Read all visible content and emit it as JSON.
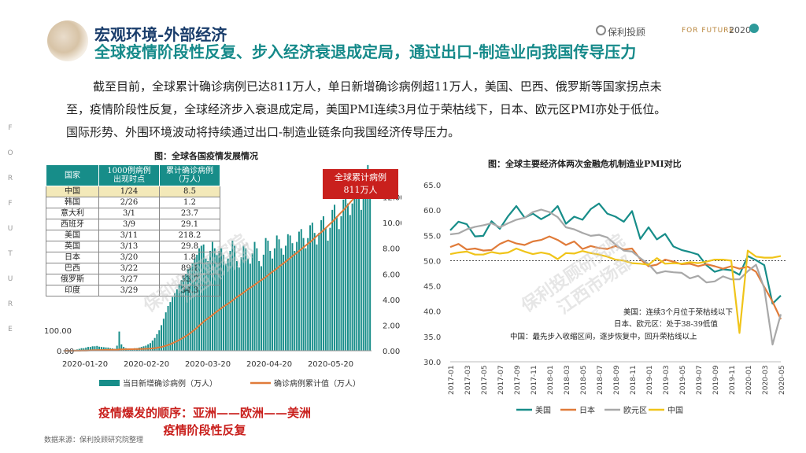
{
  "header": {
    "section": "宏观环境-外部经济",
    "title": "全球疫情阶段性反复、步入经济衰退成定局，通过出口-制造业向我国传导压力",
    "brand": "保利投顾",
    "brand_tag": "FOR FUTURE",
    "brand_year": "2020"
  },
  "side_letters": [
    "F",
    "O",
    "R",
    "F",
    "U",
    "T",
    "U",
    "R",
    "E"
  ],
  "body": {
    "line1": "截至目前，全球累计确诊病例已达811万人，单日新增确诊病例超11万人，美国、巴西、俄罗斯等国家拐点未",
    "line2": "至，疫情阶段性反复，全球经济步入衰退成定局，美国PMI连续3月位于荣枯线下，日本、欧元区PMI亦处于低位。",
    "line3": "国际形势、外围环境波动将持续通过出口-制造业链条向我国经济传导压力。"
  },
  "left_chart_title": "图：全球各国疫情发展情况",
  "right_chart_title": "图：全球主要经济体两次金融危机制造业PMI对比",
  "table": {
    "headers": [
      "国家",
      "1000例病例\n出现时点",
      "累计确诊病例\n（万人）"
    ],
    "rows": [
      [
        "中国",
        "1/24",
        "8.5"
      ],
      [
        "韩国",
        "2/26",
        "1.2"
      ],
      [
        "意大利",
        "3/1",
        "23.7"
      ],
      [
        "西班牙",
        "3/9",
        "29.1"
      ],
      [
        "美国",
        "3/11",
        "218.2"
      ],
      [
        "英国",
        "3/13",
        "29.8"
      ],
      [
        "日本",
        "3/20",
        "1.8"
      ],
      [
        "巴西",
        "3/22",
        "89.1"
      ],
      [
        "俄罗斯",
        "3/27",
        "53.7"
      ],
      [
        "印度",
        "3/29",
        "34.3"
      ]
    ]
  },
  "callout": {
    "line1": "全球累计病例",
    "line2": "811万人"
  },
  "conclusion": {
    "line1": "疫情爆发的顺序：亚洲——欧洲——美洲",
    "line2": "疫情阶段性反复"
  },
  "source": "数据来源：保利投顾研究院整理",
  "watermarks": [
    "保利投顾研究院",
    "江西市场部"
  ],
  "colors": {
    "teal": "#178d89",
    "orange": "#e07b39",
    "gray": "#a8a8a8",
    "yellow": "#f0c419",
    "red": "#c9201d"
  },
  "chart_data": [
    {
      "type": "bar+line",
      "title": "图：全球各国疫情发展情况",
      "x_ticks": [
        "2020-01-20",
        "2020-02-20",
        "2020-03-20",
        "2020-04-20",
        "2020-05-20"
      ],
      "left_axis": {
        "label": "",
        "ticks": [
          "0.00",
          "100.00"
        ]
      },
      "right_axis": {
        "label": "",
        "range": [
          0,
          14
        ],
        "ticks": [
          "0.00",
          "2.00",
          "4.00",
          "6.00",
          "8.00",
          "10.00",
          "12.00"
        ],
        "top_partial": "00"
      },
      "series": [
        {
          "name": "当日新增确诊病例（万人）",
          "kind": "bar",
          "unit": "right",
          "values": [
            0.01,
            0.01,
            0.02,
            0.03,
            0.05,
            0.07,
            0.1,
            0.15,
            0.2,
            0.2,
            0.25,
            0.3,
            0.3,
            0.35,
            0.35,
            0.38,
            0.32,
            0.3,
            0.28,
            0.26,
            0.25,
            0.2,
            0.18,
            0.15,
            0.4,
            1.5,
            0.5,
            0.3,
            0.2,
            0.18,
            0.15,
            0.15,
            0.2,
            0.2,
            0.25,
            0.3,
            0.35,
            0.4,
            0.5,
            0.6,
            0.8,
            1.0,
            1.3,
            1.6,
            2.0,
            2.5,
            3.0,
            3.5,
            3.8,
            4.2,
            4.5,
            4.8,
            5.2,
            5.5,
            5.8,
            6.0,
            6.4,
            6.5,
            6.8,
            7.2,
            7.5,
            8.0,
            8.2,
            8.3,
            7.2,
            7.0,
            7.8,
            8.5,
            8.0,
            7.5,
            7.8,
            8.0,
            7.5,
            6.8,
            7.2,
            7.8,
            8.6,
            8.2,
            7.0,
            6.5,
            7.3,
            8.2,
            8.0,
            7.2,
            6.8,
            7.6,
            8.5,
            8.0,
            7.0,
            6.6,
            7.5,
            8.8,
            8.6,
            7.8,
            7.2,
            8.0,
            9.0,
            8.7,
            8.0,
            7.5,
            8.2,
            9.1,
            9.0,
            8.4,
            7.8,
            8.5,
            9.3,
            9.5,
            8.8,
            8.0,
            8.8,
            9.8,
            10.0,
            9.2,
            8.3,
            9.2,
            10.2,
            10.5,
            9.6,
            8.6,
            9.6,
            11.0,
            11.4,
            10.5,
            9.5,
            10.5,
            11.8,
            12.3,
            11.5,
            10.6,
            11.5,
            12.8,
            13.2,
            12.0,
            11.0,
            12.5,
            13.8,
            14.5,
            12.5
          ]
        },
        {
          "name": "确诊病例累计值（万人）",
          "kind": "line",
          "unit": "left",
          "values": [
            0,
            0,
            0,
            0.1,
            0.1,
            0.2,
            0.3,
            0.5,
            0.7,
            0.9,
            1.2,
            1.5,
            1.9,
            2.2,
            2.6,
            3.0,
            3.3,
            3.6,
            4.0,
            4.2,
            4.5,
            4.7,
            4.9,
            5.0,
            5.5,
            6.8,
            7.1,
            7.3,
            7.5,
            7.6,
            7.8,
            7.9,
            8.1,
            8.3,
            8.5,
            8.8,
            9.2,
            9.5,
            10,
            11,
            12,
            13,
            15,
            17,
            19,
            22,
            25,
            29,
            33,
            38,
            43,
            48,
            54,
            60,
            66,
            73,
            80,
            88,
            96,
            105,
            114,
            124,
            134,
            144,
            152,
            160,
            168,
            177,
            186,
            194,
            202,
            210,
            218,
            225,
            232,
            240,
            248,
            257,
            265,
            272,
            279,
            287,
            295,
            303,
            310,
            317,
            325,
            333,
            341,
            348,
            355,
            363,
            372,
            381,
            389,
            396,
            405,
            414,
            423,
            431,
            439,
            448,
            457,
            466,
            474,
            482,
            491,
            500,
            509,
            518,
            527,
            535,
            545,
            555,
            565,
            574,
            583,
            593,
            604,
            615,
            625,
            635,
            646,
            658,
            670,
            681,
            692,
            704,
            717,
            730,
            742,
            754,
            767,
            781,
            795,
            809,
            811
          ]
        }
      ]
    },
    {
      "type": "line",
      "title": "图：全球主要经济体两次金融危机制造业PMI对比",
      "ylim": [
        30,
        65
      ],
      "y_ticks": [
        "30.0",
        "35.0",
        "40.0",
        "45.0",
        "50.0",
        "55.0",
        "60.0",
        "65.0"
      ],
      "x_ticks": [
        "2017-01",
        "2017-03",
        "2017-05",
        "2017-07",
        "2017-09",
        "2017-11",
        "2018-01",
        "2018-03",
        "2018-05",
        "2018-07",
        "2018-09",
        "2018-11",
        "2019-01",
        "2019-03",
        "2019-05",
        "2019-07",
        "2019-09",
        "2019-11",
        "2020-01",
        "2020-03",
        "2020-05"
      ],
      "reference_line": 50,
      "annotation": {
        "line1": "美国：连续3个月位于荣枯线以下",
        "line2": "日本、欧元区：处于38-39低值",
        "line3": "中国：最先步入收缩区间，逐步恢复中，回升荣枯线以上"
      },
      "series": [
        {
          "name": "美国",
          "color": "#178d89",
          "values": [
            56.0,
            57.7,
            57.2,
            54.8,
            54.9,
            57.8,
            56.3,
            58.8,
            60.8,
            58.5,
            59.3,
            58.2,
            59.1,
            60.8,
            57.3,
            58.7,
            58.1,
            60.2,
            61.3,
            59.3,
            58.7,
            57.7,
            59.8,
            54.3,
            56.6,
            54.2,
            55.3,
            52.8,
            52.1,
            51.7,
            51.2,
            49.1,
            47.8,
            48.3,
            48.1,
            47.2,
            50.9,
            50.1,
            49.1,
            41.5,
            43.1
          ]
        },
        {
          "name": "日本",
          "color": "#e07b39",
          "values": [
            52.7,
            53.3,
            52.2,
            52.4,
            52.0,
            52.1,
            53.3,
            54.0,
            53.4,
            53.1,
            53.8,
            54.1,
            54.8,
            54.1,
            53.1,
            53.8,
            52.3,
            52.9,
            52.5,
            52.3,
            52.9,
            52.2,
            52.4,
            50.3,
            48.9,
            49.2,
            50.2,
            49.8,
            49.3,
            49.4,
            48.9,
            49.3,
            48.9,
            48.4,
            48.9,
            48.4,
            48.8,
            47.8,
            44.8,
            41.9,
            38.4
          ]
        },
        {
          "name": "欧元区",
          "color": "#a8a8a8",
          "values": [
            55.2,
            55.4,
            56.2,
            56.7,
            57.0,
            57.4,
            56.6,
            57.4,
            58.1,
            58.5,
            59.6,
            60.1,
            59.6,
            58.6,
            56.6,
            56.2,
            55.5,
            54.9,
            55.1,
            54.6,
            53.2,
            52.0,
            51.8,
            50.5,
            49.3,
            47.5,
            47.9,
            47.7,
            47.6,
            46.5,
            47.0,
            45.7,
            45.9,
            46.9,
            46.3,
            46.3,
            47.9,
            49.2,
            44.5,
            33.4,
            39.4
          ]
        },
        {
          "name": "中国",
          "color": "#f0c419",
          "values": [
            51.3,
            51.6,
            51.8,
            51.2,
            51.2,
            51.7,
            51.4,
            51.6,
            52.4,
            51.8,
            51.3,
            51.6,
            51.3,
            50.3,
            51.5,
            51.4,
            51.9,
            51.5,
            51.2,
            50.8,
            50.2,
            50.0,
            49.5,
            49.4,
            49.2,
            50.5,
            49.4,
            49.5,
            49.4,
            49.7,
            49.5,
            49.8,
            50.2,
            50.2,
            50.0,
            35.7,
            52.0,
            50.8,
            50.6,
            50.6,
            50.9
          ]
        }
      ]
    }
  ]
}
